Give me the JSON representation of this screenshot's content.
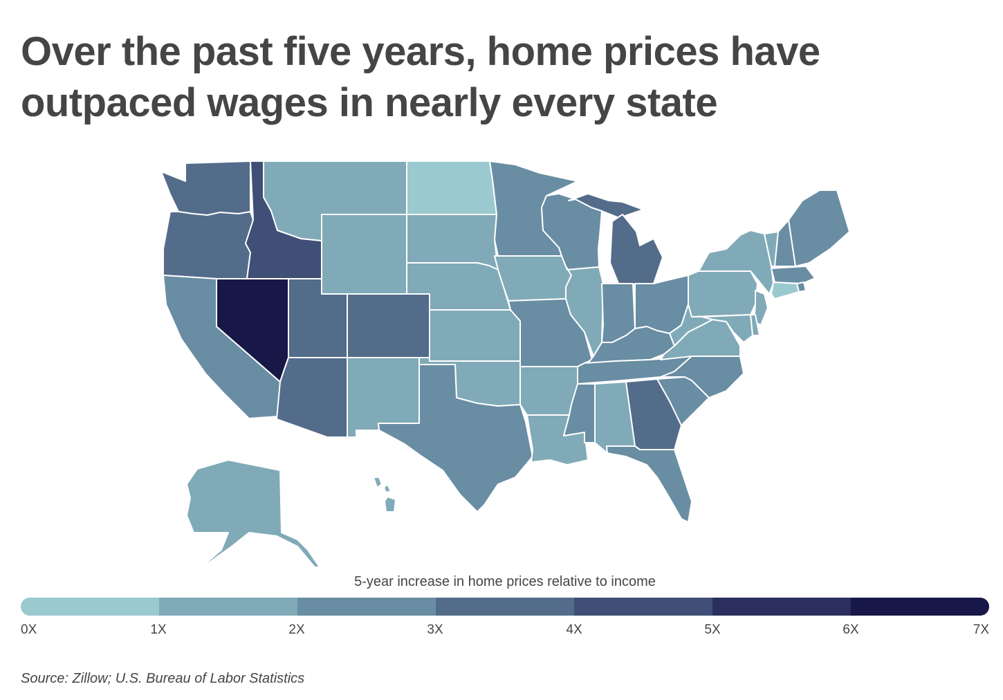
{
  "title_lines": [
    "Over the past five years, home prices have",
    "outpaced wages in nearly every state"
  ],
  "legend": {
    "title": "5-year increase in home prices relative to income",
    "ticks": [
      "0X",
      "1X",
      "2X",
      "3X",
      "4X",
      "5X",
      "6X",
      "7X"
    ],
    "colors": [
      "#9ac9cf",
      "#80aab8",
      "#698da3",
      "#536c8a",
      "#3f4f75",
      "#2a2f5d",
      "#171847"
    ]
  },
  "source": "Source: Zillow; U.S. Bureau of Labor Statistics",
  "map_data": {
    "metric": "5-year increase in home prices relative to income",
    "bins": [
      "0X-1X",
      "1X-2X",
      "2X-3X",
      "3X-4X",
      "4X-5X",
      "5X-6X",
      "6X-7X"
    ],
    "states": [
      {
        "state": "WA",
        "bin": 3
      },
      {
        "state": "OR",
        "bin": 3
      },
      {
        "state": "CA",
        "bin": 2
      },
      {
        "state": "NV",
        "bin": 6
      },
      {
        "state": "ID",
        "bin": 4
      },
      {
        "state": "MT",
        "bin": 1
      },
      {
        "state": "WY",
        "bin": 1
      },
      {
        "state": "UT",
        "bin": 3
      },
      {
        "state": "CO",
        "bin": 3
      },
      {
        "state": "AZ",
        "bin": 3
      },
      {
        "state": "NM",
        "bin": 1
      },
      {
        "state": "ND",
        "bin": 0
      },
      {
        "state": "SD",
        "bin": 1
      },
      {
        "state": "NE",
        "bin": 1
      },
      {
        "state": "KS",
        "bin": 1
      },
      {
        "state": "OK",
        "bin": 1
      },
      {
        "state": "TX",
        "bin": 2
      },
      {
        "state": "MN",
        "bin": 2
      },
      {
        "state": "IA",
        "bin": 1
      },
      {
        "state": "MO",
        "bin": 2
      },
      {
        "state": "AR",
        "bin": 1
      },
      {
        "state": "LA",
        "bin": 1
      },
      {
        "state": "WI",
        "bin": 2
      },
      {
        "state": "IL",
        "bin": 1
      },
      {
        "state": "MI",
        "bin": 3
      },
      {
        "state": "IN",
        "bin": 2
      },
      {
        "state": "OH",
        "bin": 2
      },
      {
        "state": "KY",
        "bin": 2
      },
      {
        "state": "TN",
        "bin": 2
      },
      {
        "state": "MS",
        "bin": 2
      },
      {
        "state": "AL",
        "bin": 1
      },
      {
        "state": "GA",
        "bin": 3
      },
      {
        "state": "FL",
        "bin": 2
      },
      {
        "state": "SC",
        "bin": 2
      },
      {
        "state": "NC",
        "bin": 2
      },
      {
        "state": "VA",
        "bin": 1
      },
      {
        "state": "WV",
        "bin": 1
      },
      {
        "state": "PA",
        "bin": 1
      },
      {
        "state": "NY",
        "bin": 1
      },
      {
        "state": "VT",
        "bin": 1
      },
      {
        "state": "NH",
        "bin": 2
      },
      {
        "state": "ME",
        "bin": 2
      },
      {
        "state": "MA",
        "bin": 2
      },
      {
        "state": "RI",
        "bin": 2
      },
      {
        "state": "CT",
        "bin": 0
      },
      {
        "state": "NJ",
        "bin": 1
      },
      {
        "state": "DE",
        "bin": 1
      },
      {
        "state": "MD",
        "bin": 1
      },
      {
        "state": "AK",
        "bin": 1
      },
      {
        "state": "HI",
        "bin": 1
      }
    ]
  }
}
